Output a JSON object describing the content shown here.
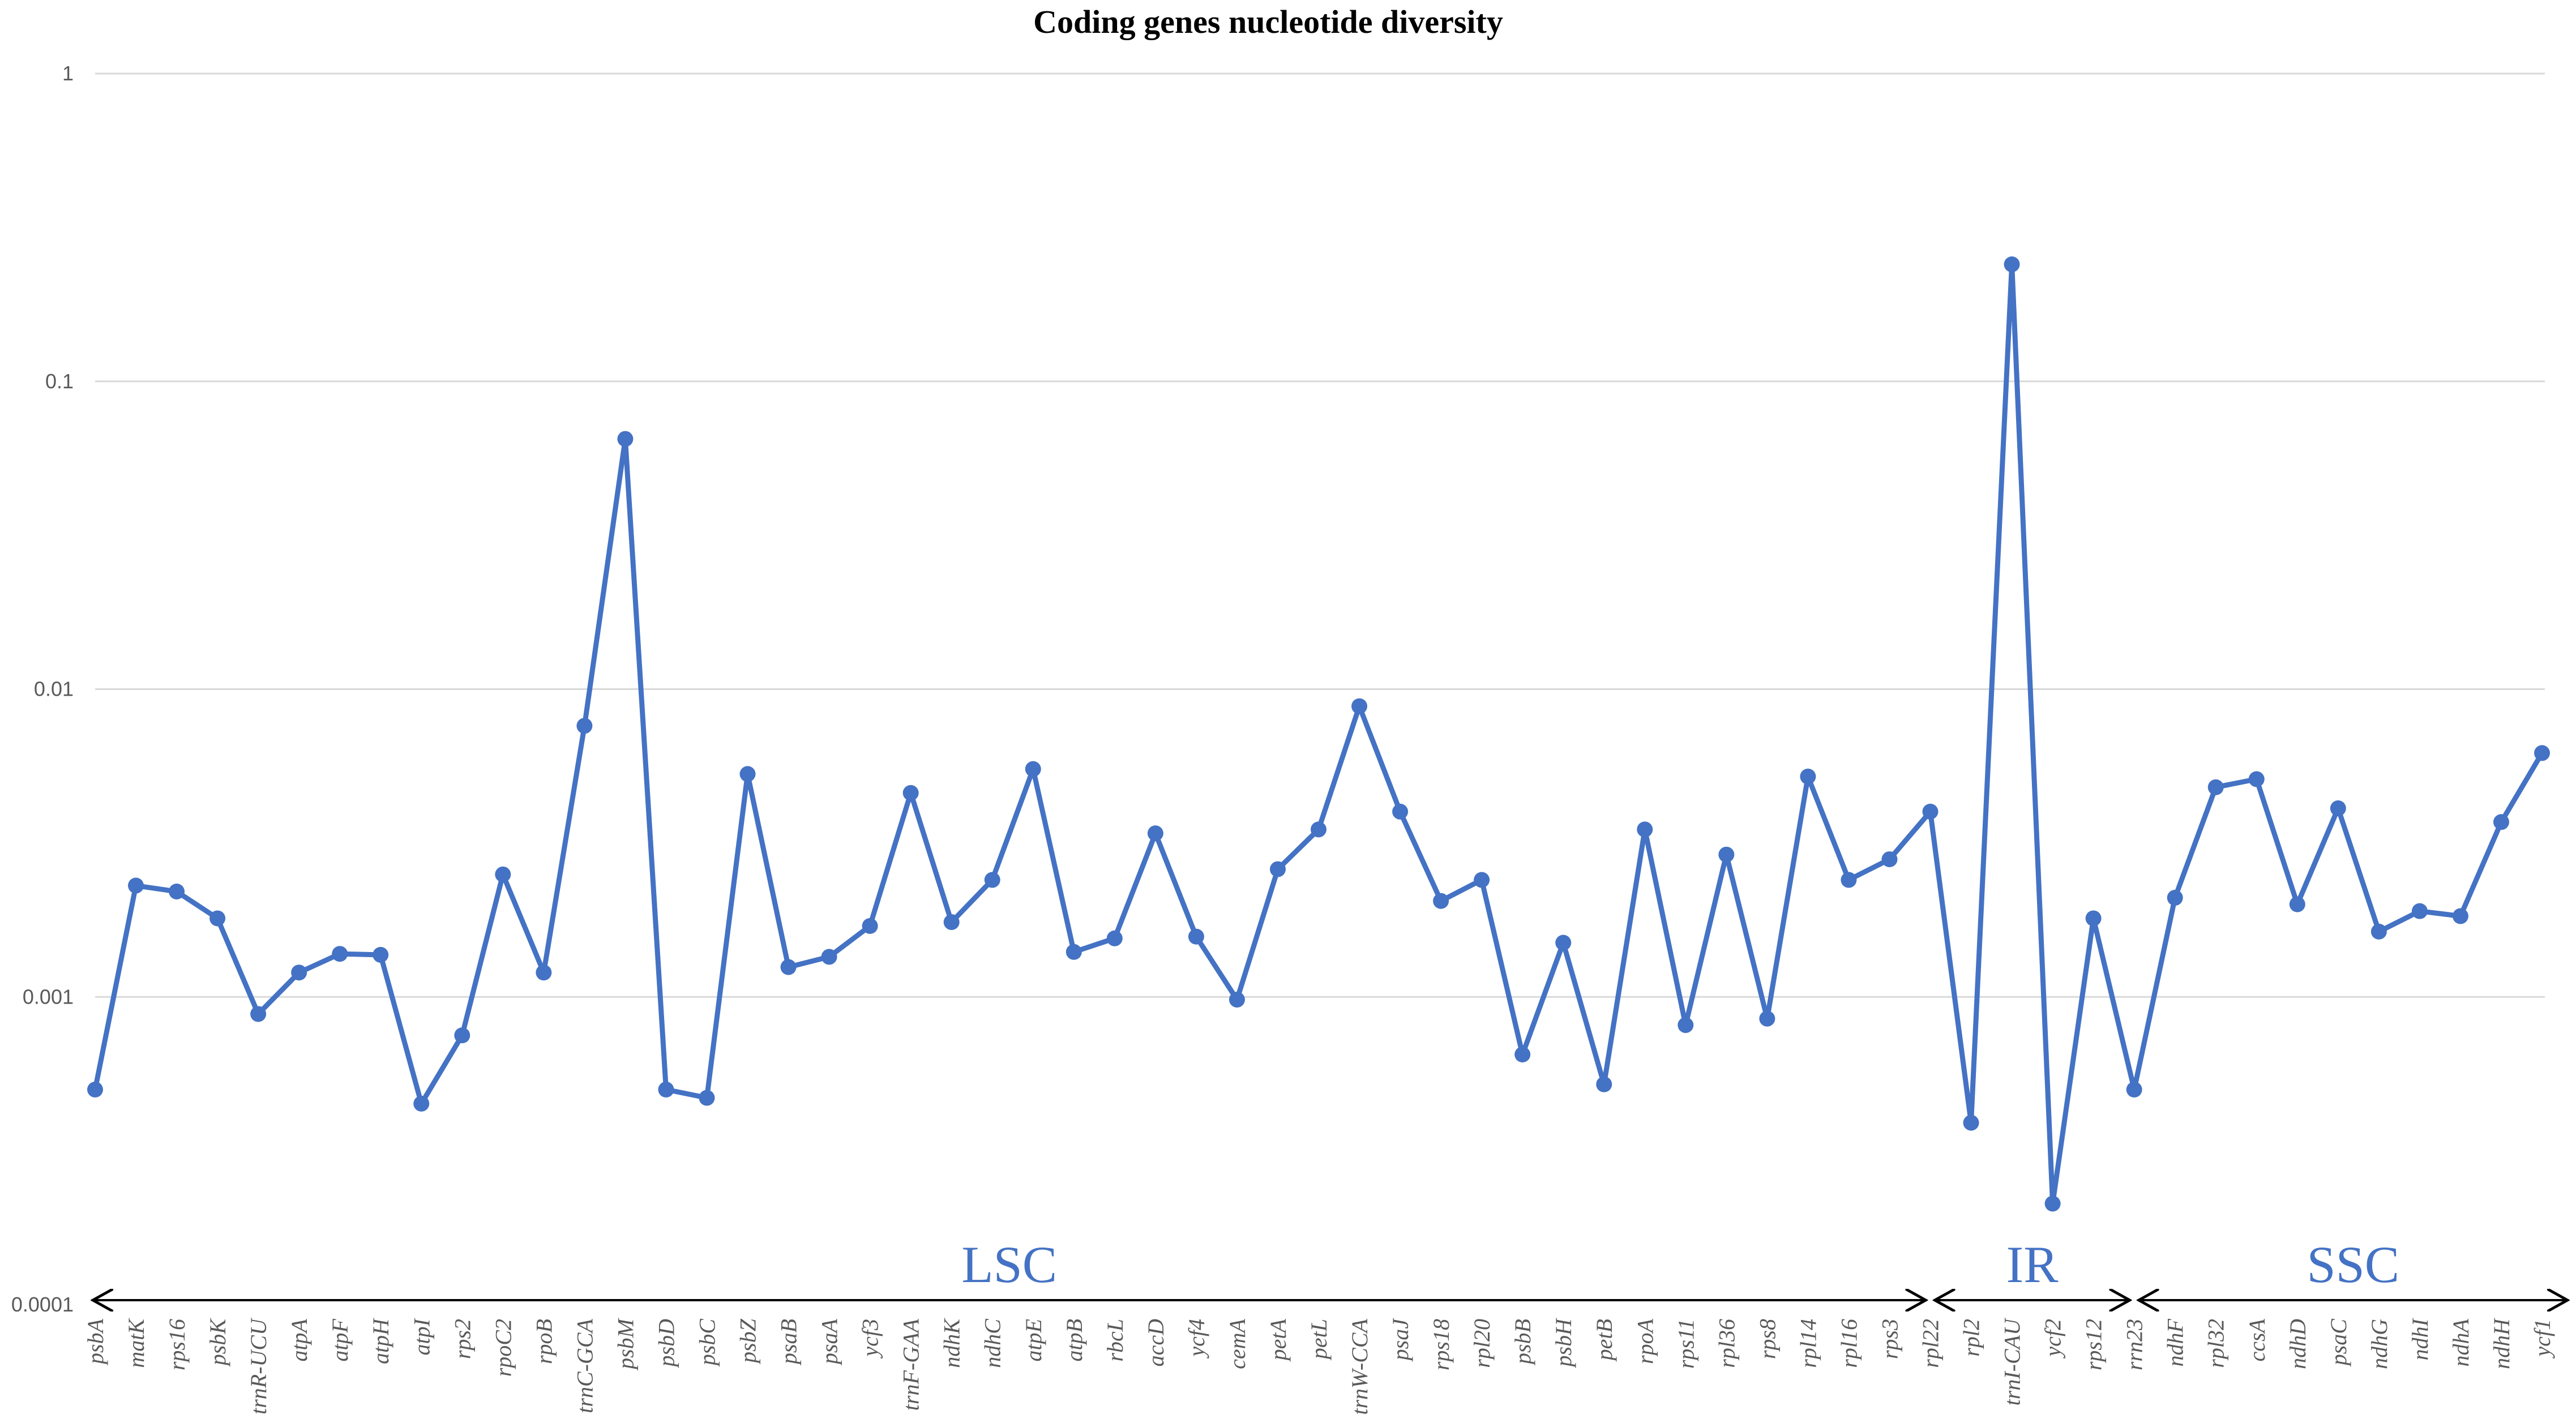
{
  "chart_data": {
    "type": "line",
    "title": "Coding genes nucleotide diversity",
    "y_scale": "log",
    "ylim": [
      0.0001,
      1
    ],
    "y_ticks": [
      "1",
      "0.1",
      "0.01",
      "0.001",
      "0.0001"
    ],
    "grid": true,
    "colors": {
      "series": "#4472C4",
      "grid": "#d9d9d9",
      "axis_text": "#595959",
      "region_arrows": "#000000"
    },
    "categories": [
      "psbA",
      "matK",
      "rps16",
      "psbK",
      "trnR-UCU",
      "atpA",
      "atpF",
      "atpH",
      "atpI",
      "rps2",
      "rpoC2",
      "rpoB",
      "trnC-GCA",
      "psbM",
      "psbD",
      "psbC",
      "psbZ",
      "psaB",
      "psaA",
      "ycf3",
      "trnF-GAA",
      "ndhK",
      "ndhC",
      "atpE",
      "atpB",
      "rbcL",
      "accD",
      "ycf4",
      "cemA",
      "petA",
      "petL",
      "trnW-CCA",
      "psaJ",
      "rps18",
      "rpl20",
      "psbB",
      "psbH",
      "petB",
      "rpoA",
      "rps11",
      "rpl36",
      "rps8",
      "rpl14",
      "rpl16",
      "rps3",
      "rpl22",
      "rpl2",
      "trnI-CAU",
      "ycf2",
      "rps12",
      "rrn23",
      "ndhF",
      "rpl32",
      "ccsA",
      "ndhD",
      "psaC",
      "ndhG",
      "ndhI",
      "ndhA",
      "ndhH",
      "ycf1"
    ],
    "series": [
      {
        "values": [
          0.0005,
          0.0023,
          0.0022,
          0.0018,
          0.00088,
          0.0012,
          0.00138,
          0.00137,
          0.00045,
          0.00075,
          0.0025,
          0.0012,
          0.0076,
          0.065,
          0.0005,
          0.00047,
          0.0053,
          0.00125,
          0.00135,
          0.0017,
          0.0046,
          0.00175,
          0.0024,
          0.0055,
          0.0014,
          0.00155,
          0.0034,
          0.00157,
          0.00098,
          0.0026,
          0.0035,
          0.0088,
          0.004,
          0.00205,
          0.0024,
          0.00065,
          0.0015,
          0.00052,
          0.0035,
          0.00081,
          0.0029,
          0.00085,
          0.0052,
          0.0024,
          0.0028,
          0.004,
          0.00039,
          0.24,
          0.000213,
          0.0018,
          0.0005,
          0.0021,
          0.0048,
          0.0051,
          0.002,
          0.0041,
          0.00163,
          0.0019,
          0.00183,
          0.0037,
          0.0062
        ]
      }
    ],
    "regions": [
      {
        "label": "LSC",
        "from": "psbA",
        "to": "rpl22"
      },
      {
        "label": "IR",
        "from": "rpl22",
        "to": "rrn23"
      },
      {
        "label": "SSC",
        "from": "rrn23",
        "to": "ycf1"
      }
    ]
  }
}
